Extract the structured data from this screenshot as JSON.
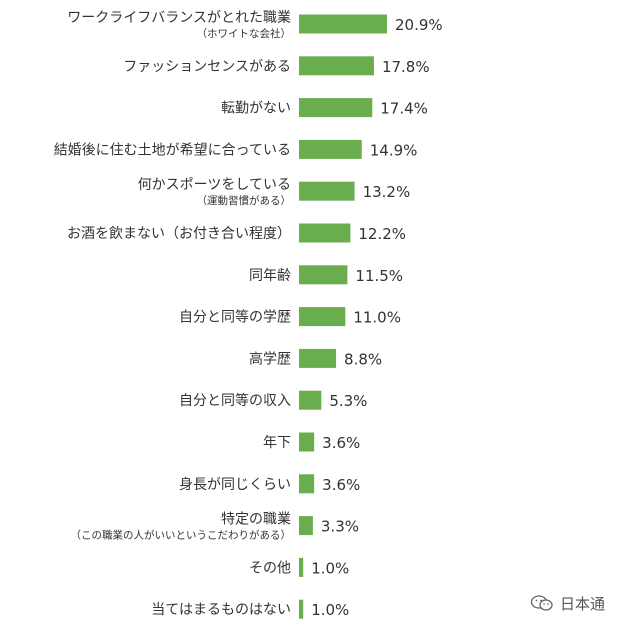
{
  "chart_data": {
    "type": "bar",
    "orientation": "horizontal",
    "bar_color": "#6aad4f",
    "categories": [
      {
        "label": "ワークライフバランスがとれた職業",
        "sublabel": "（ホワイトな会社）",
        "value": 20.9,
        "value_label": "20.9%"
      },
      {
        "label": "ファッションセンスがある",
        "sublabel": "",
        "value": 17.8,
        "value_label": "17.8%"
      },
      {
        "label": "転勤がない",
        "sublabel": "",
        "value": 17.4,
        "value_label": "17.4%"
      },
      {
        "label": "結婚後に住む土地が希望に合っている",
        "sublabel": "",
        "value": 14.9,
        "value_label": "14.9%"
      },
      {
        "label": "何かスポーツをしている",
        "sublabel": "（運動習慣がある）",
        "value": 13.2,
        "value_label": "13.2%"
      },
      {
        "label": "お酒を飲まない（お付き合い程度）",
        "sublabel": "",
        "value": 12.2,
        "value_label": "12.2%"
      },
      {
        "label": "同年齢",
        "sublabel": "",
        "value": 11.5,
        "value_label": "11.5%"
      },
      {
        "label": "自分と同等の学歴",
        "sublabel": "",
        "value": 11.0,
        "value_label": "11.0%"
      },
      {
        "label": "高学歴",
        "sublabel": "",
        "value": 8.8,
        "value_label": "8.8%"
      },
      {
        "label": "自分と同等の収入",
        "sublabel": "",
        "value": 5.3,
        "value_label": "5.3%"
      },
      {
        "label": "年下",
        "sublabel": "",
        "value": 3.6,
        "value_label": "3.6%"
      },
      {
        "label": "身長が同じくらい",
        "sublabel": "",
        "value": 3.6,
        "value_label": "3.6%"
      },
      {
        "label": "特定の職業",
        "sublabel": "（この職業の人がいいというこだわりがある）",
        "value": 3.3,
        "value_label": "3.3%"
      },
      {
        "label": "その他",
        "sublabel": "",
        "value": 1.0,
        "value_label": "1.0%"
      },
      {
        "label": "当てはまるものはない",
        "sublabel": "",
        "value": 1.0,
        "value_label": "1.0%"
      }
    ],
    "xlim": [
      0,
      20.9
    ]
  },
  "watermark": {
    "text": "日本通",
    "icon": "wechat-icon"
  }
}
